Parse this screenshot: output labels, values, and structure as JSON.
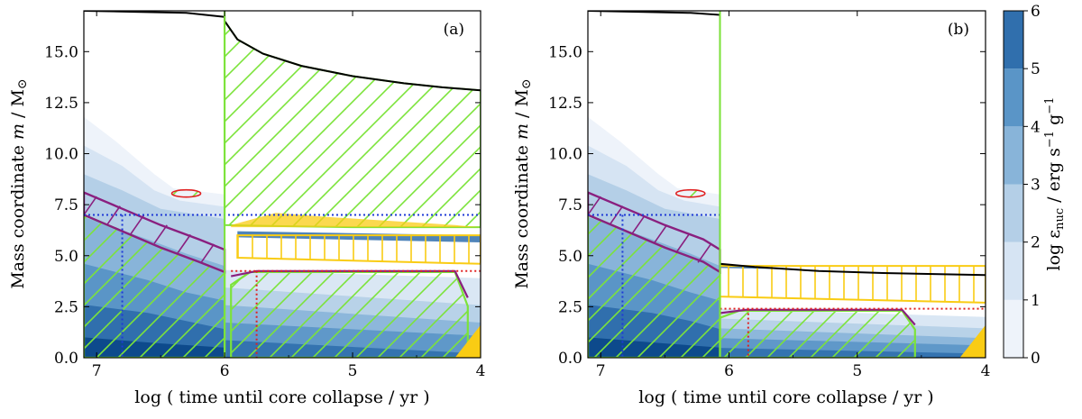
{
  "chart_data": [
    {
      "type": "area",
      "panel_label": "(a)",
      "xlabel": "log ( time until core collapse / yr )",
      "ylabel_prefix": "Mass coordinate ",
      "ylabel_var": "m",
      "ylabel_unit": " / M",
      "ylabel_sun": "⊙",
      "xlim": [
        7.1,
        4.0
      ],
      "ylim": [
        0.0,
        17.0
      ],
      "xticks": [
        7,
        6,
        5,
        4
      ],
      "xtick_labels": [
        "7",
        "6",
        "5",
        "4"
      ],
      "yticks": [
        0.0,
        2.5,
        5.0,
        7.5,
        10.0,
        12.5,
        15.0
      ],
      "ytick_labels": [
        "0.0",
        "2.5",
        "5.0",
        "7.5",
        "10.0",
        "12.5",
        "15.0"
      ],
      "total_mass": [
        [
          7.1,
          17.0
        ],
        [
          6.7,
          16.95
        ],
        [
          6.3,
          16.9
        ],
        [
          6.0,
          16.7
        ],
        [
          6.0,
          16.5
        ],
        [
          5.9,
          15.6
        ],
        [
          5.7,
          14.9
        ],
        [
          5.4,
          14.3
        ],
        [
          5.0,
          13.8
        ],
        [
          4.6,
          13.45
        ],
        [
          4.3,
          13.25
        ],
        [
          4.0,
          13.1
        ]
      ],
      "envelope_convection": {
        "x_start": 6.0,
        "x_end": 4.0,
        "base": [
          [
            6.0,
            6.5
          ],
          [
            5.6,
            6.45
          ],
          [
            5.0,
            6.4
          ],
          [
            4.0,
            6.4
          ]
        ]
      },
      "core_convection": [
        [
          7.1,
          7.0
        ],
        [
          6.8,
          6.2
        ],
        [
          6.5,
          5.4
        ],
        [
          6.2,
          4.7
        ],
        [
          6.0,
          4.2
        ]
      ],
      "convective_shells": [
        {
          "x_start": 5.95,
          "x_end": 4.1,
          "top": 4.2
        }
      ],
      "shell_burning": {
        "top": 6.0,
        "bottom": 4.9,
        "x_start": 5.9,
        "x_end": 4.0
      },
      "boundary_lines": [
        {
          "name": "blue",
          "y": 7.0,
          "x_start": 7.1,
          "x_end": 4.0,
          "x_drop": 6.8
        },
        {
          "name": "red",
          "y": 4.25,
          "x_start": 5.95,
          "x_end": 4.0,
          "x_drop": 5.75
        }
      ],
      "burning_levels": [
        0,
        1,
        2,
        3,
        4,
        5,
        6
      ]
    },
    {
      "type": "area",
      "panel_label": "(b)",
      "xlabel": "log ( time until core collapse / yr )",
      "ylabel_prefix": "Mass coordinate ",
      "ylabel_var": "m",
      "ylabel_unit": " / M",
      "ylabel_sun": "⊙",
      "xlim": [
        7.1,
        4.0
      ],
      "ylim": [
        0.0,
        17.0
      ],
      "xticks": [
        7,
        6,
        5,
        4
      ],
      "xtick_labels": [
        "7",
        "6",
        "5",
        "4"
      ],
      "yticks": [
        0.0,
        2.5,
        5.0,
        7.5,
        10.0,
        12.5,
        15.0
      ],
      "ytick_labels": [
        "0.0",
        "2.5",
        "5.0",
        "7.5",
        "10.0",
        "12.5",
        "15.0"
      ],
      "total_mass": [
        [
          7.1,
          17.0
        ],
        [
          6.7,
          16.95
        ],
        [
          6.3,
          16.9
        ],
        [
          6.07,
          16.8
        ],
        [
          6.07,
          4.6
        ],
        [
          5.8,
          4.45
        ],
        [
          5.3,
          4.25
        ],
        [
          4.8,
          4.15
        ],
        [
          4.0,
          4.05
        ]
      ],
      "core_convection": [
        [
          7.1,
          7.0
        ],
        [
          6.8,
          6.2
        ],
        [
          6.5,
          5.4
        ],
        [
          6.2,
          4.7
        ],
        [
          6.07,
          4.2
        ]
      ],
      "convective_shells": [
        {
          "x_start": 6.07,
          "x_end": 4.55,
          "top": 2.3
        }
      ],
      "shell_burning": {
        "top": 4.5,
        "bottom": 3.0,
        "x_start": 6.07,
        "x_end": 4.0
      },
      "boundary_lines": [
        {
          "name": "blue",
          "y": 7.0,
          "x_start": 7.1,
          "x_end": 6.07,
          "x_drop": 6.83
        },
        {
          "name": "red",
          "y": 2.4,
          "x_start": 6.07,
          "x_end": 4.0,
          "x_drop": 5.85
        }
      ],
      "burning_levels": [
        0,
        1,
        2,
        3,
        4,
        5,
        6
      ]
    }
  ],
  "colorbar": {
    "label_text": "log ε",
    "label_sub": "nuc",
    "label_units": " / erg s",
    "label_exp1": "−1",
    "label_mid": " g",
    "label_exp2": "−1",
    "ticks": [
      "0",
      "1",
      "2",
      "3",
      "4",
      "5",
      "6"
    ],
    "colors": [
      "#eef3fa",
      "#d6e4f3",
      "#b4cfe7",
      "#88b4d9",
      "#5a95c7",
      "#306fad",
      "#0d4a8c"
    ]
  },
  "colors": {
    "convection": "#7ce33a",
    "overshoot": "#f9cc14",
    "semiconvection": "#8a1f7f",
    "blue_line": "#1f3ad6",
    "red_line": "#e02020"
  }
}
